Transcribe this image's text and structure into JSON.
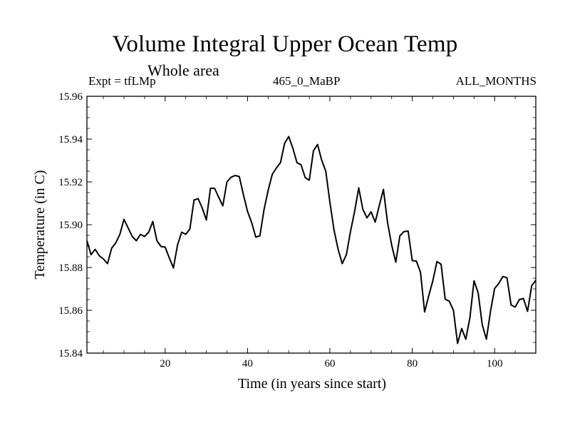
{
  "chart_data": {
    "type": "line",
    "title": "Volume Integral Upper Ocean Temp",
    "subtitle": "Whole area",
    "left_label": "Expt = tfLMp",
    "center_label": "465_0_MaBP",
    "right_label": "ALL_MONTHS",
    "xlabel": "Time (in years since start)",
    "ylabel": "Temperature (in C)",
    "xlim": [
      1,
      110
    ],
    "ylim": [
      15.84,
      15.96
    ],
    "x_ticks": [
      20,
      40,
      60,
      80,
      100
    ],
    "y_ticks": [
      "15.84",
      "15.86",
      "15.88",
      "15.90",
      "15.92",
      "15.94",
      "15.96"
    ],
    "series": [
      {
        "name": "Volume Integral Upper Ocean Temp",
        "x": [
          1,
          2,
          3,
          4,
          5,
          6,
          7,
          8,
          9,
          10,
          11,
          12,
          13,
          14,
          15,
          16,
          17,
          18,
          19,
          20,
          21,
          22,
          23,
          24,
          25,
          26,
          27,
          28,
          29,
          30,
          31,
          32,
          33,
          34,
          35,
          36,
          37,
          38,
          39,
          40,
          41,
          42,
          43,
          44,
          45,
          46,
          47,
          48,
          49,
          50,
          51,
          52,
          53,
          54,
          55,
          56,
          57,
          58,
          59,
          60,
          61,
          62,
          63,
          64,
          65,
          66,
          67,
          68,
          69,
          70,
          71,
          72,
          73,
          74,
          75,
          76,
          77,
          78,
          79,
          80,
          81,
          82,
          83,
          84,
          85,
          86,
          87,
          88,
          89,
          90,
          91,
          92,
          93,
          94,
          95,
          96,
          97,
          98,
          99,
          100,
          101,
          102,
          103,
          104,
          105,
          106,
          107,
          108,
          109,
          110
        ],
        "values": [
          15.8925,
          15.886,
          15.8885,
          15.8855,
          15.884,
          15.8818,
          15.889,
          15.8915,
          15.8955,
          15.9025,
          15.8985,
          15.8945,
          15.8925,
          15.8955,
          15.8945,
          15.8965,
          15.9015,
          15.8925,
          15.8898,
          15.8895,
          15.8845,
          15.8798,
          15.8905,
          15.8965,
          15.8955,
          15.898,
          15.9115,
          15.9122,
          15.9078,
          15.9022,
          15.917,
          15.917,
          15.9128,
          15.9088,
          15.92,
          15.9222,
          15.923,
          15.9225,
          15.914,
          15.9062,
          15.901,
          15.8942,
          15.8948,
          15.907,
          15.916,
          15.9235,
          15.9265,
          15.929,
          15.938,
          15.9412,
          15.9358,
          15.929,
          15.928,
          15.922,
          15.9208,
          15.9345,
          15.9375,
          15.9302,
          15.925,
          15.9105,
          15.8975,
          15.8885,
          15.8818,
          15.886,
          15.8968,
          15.9062,
          15.9172,
          15.9072,
          15.9032,
          15.906,
          15.9012,
          15.909,
          15.9165,
          15.901,
          15.8905,
          15.8825,
          15.8948,
          15.8968,
          15.897,
          15.8832,
          15.883,
          15.8778,
          15.8592,
          15.8668,
          15.8738,
          15.8828,
          15.8815,
          15.8652,
          15.8642,
          15.86,
          15.8445,
          15.8515,
          15.8465,
          15.8565,
          15.8738,
          15.8682,
          15.8532,
          15.8465,
          15.8595,
          15.8702,
          15.8725,
          15.8758,
          15.8752,
          15.8625,
          15.8615,
          15.865,
          15.8655,
          15.8595,
          15.8715,
          15.874
        ]
      }
    ]
  }
}
